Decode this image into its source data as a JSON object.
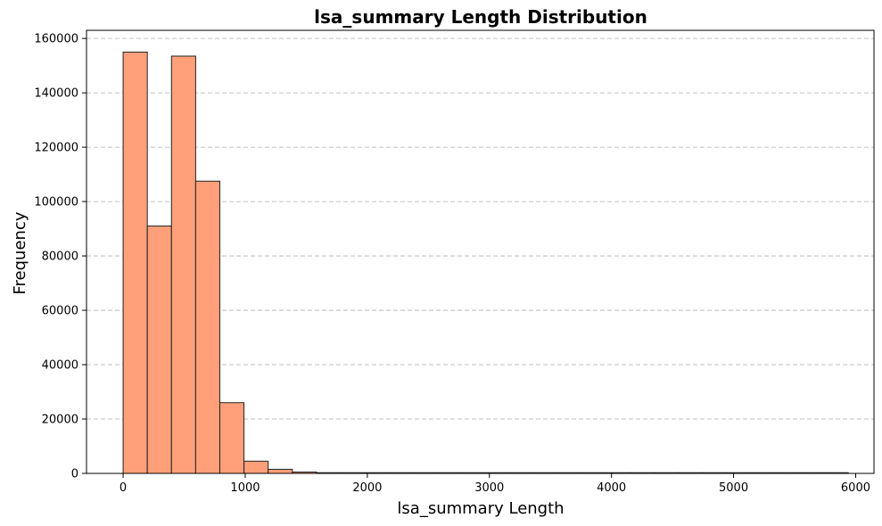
{
  "chart_data": {
    "type": "bar",
    "title": "lsa_summary Length Distribution",
    "xlabel": "lsa_summary Length",
    "ylabel": "Frequency",
    "xlim": [
      -300,
      6150
    ],
    "ylim": [
      0,
      163000
    ],
    "xticks": [
      0,
      1000,
      2000,
      3000,
      4000,
      5000,
      6000
    ],
    "yticks": [
      0,
      20000,
      40000,
      60000,
      80000,
      100000,
      120000,
      140000,
      160000
    ],
    "grid": "y-dashed",
    "bar_color": "#FFA07A",
    "edge_color": "#222222",
    "bins": [
      {
        "x0": 0,
        "x1": 198,
        "value": 155000
      },
      {
        "x0": 198,
        "x1": 396,
        "value": 91000
      },
      {
        "x0": 396,
        "x1": 594,
        "value": 153500
      },
      {
        "x0": 594,
        "x1": 792,
        "value": 107500
      },
      {
        "x0": 792,
        "x1": 990,
        "value": 26000
      },
      {
        "x0": 990,
        "x1": 1188,
        "value": 4500
      },
      {
        "x0": 1188,
        "x1": 1386,
        "value": 1500
      },
      {
        "x0": 1386,
        "x1": 1584,
        "value": 500
      },
      {
        "x0": 1584,
        "x1": 1782,
        "value": 150
      },
      {
        "x0": 1782,
        "x1": 1980,
        "value": 60
      },
      {
        "x0": 1980,
        "x1": 2178,
        "value": 20
      },
      {
        "x0": 2178,
        "x1": 2376,
        "value": 10
      },
      {
        "x0": 2376,
        "x1": 2574,
        "value": 5
      },
      {
        "x0": 2574,
        "x1": 2772,
        "value": 4
      },
      {
        "x0": 2772,
        "x1": 2970,
        "value": 3
      },
      {
        "x0": 2970,
        "x1": 3168,
        "value": 2
      },
      {
        "x0": 3168,
        "x1": 3366,
        "value": 2
      },
      {
        "x0": 3366,
        "x1": 3564,
        "value": 1
      },
      {
        "x0": 3564,
        "x1": 3762,
        "value": 1
      },
      {
        "x0": 3762,
        "x1": 3960,
        "value": 1
      },
      {
        "x0": 3960,
        "x1": 4158,
        "value": 1
      },
      {
        "x0": 4158,
        "x1": 4356,
        "value": 1
      },
      {
        "x0": 4356,
        "x1": 4554,
        "value": 1
      },
      {
        "x0": 4554,
        "x1": 4752,
        "value": 1
      },
      {
        "x0": 4752,
        "x1": 4950,
        "value": 1
      },
      {
        "x0": 4950,
        "x1": 5148,
        "value": 1
      },
      {
        "x0": 5148,
        "x1": 5346,
        "value": 1
      },
      {
        "x0": 5346,
        "x1": 5544,
        "value": 1
      },
      {
        "x0": 5544,
        "x1": 5742,
        "value": 1
      },
      {
        "x0": 5742,
        "x1": 5940,
        "value": 1
      }
    ]
  }
}
